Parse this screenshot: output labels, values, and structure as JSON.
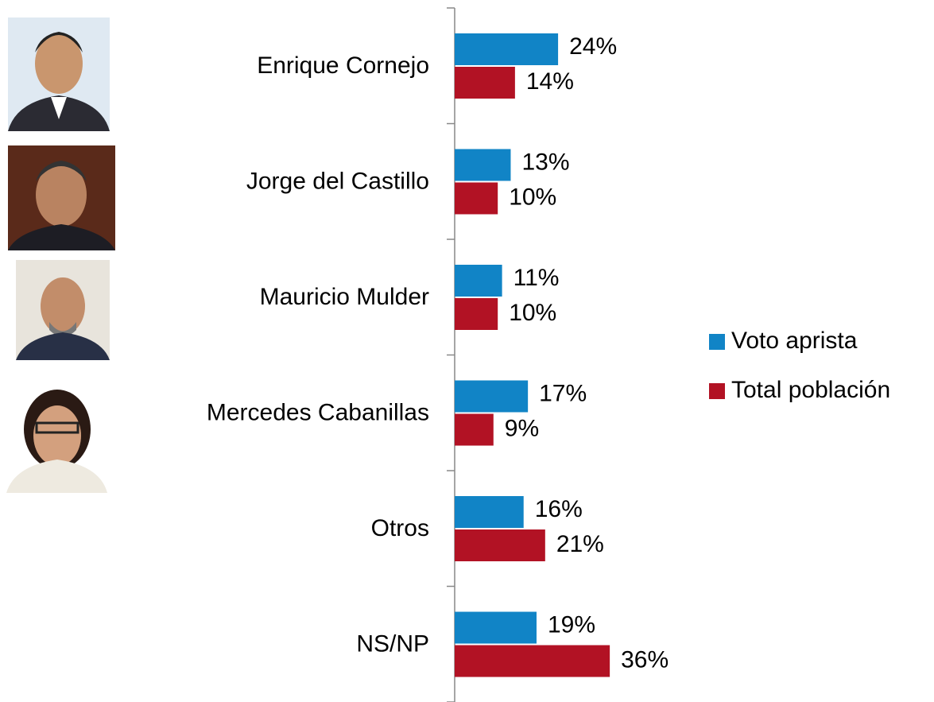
{
  "chart_data": {
    "type": "bar",
    "orientation": "horizontal",
    "categories": [
      "Enrique Cornejo",
      "Jorge del Castillo",
      "Mauricio Mulder",
      "Mercedes Cabanillas",
      "Otros",
      "NS/NP"
    ],
    "series": [
      {
        "name": "Voto aprista",
        "color": "#1184c6",
        "values": [
          24,
          13,
          11,
          17,
          16,
          19
        ],
        "value_labels": [
          "24%",
          "13%",
          "11%",
          "17%",
          "16%",
          "19%"
        ]
      },
      {
        "name": "Total población",
        "color": "#b21224",
        "values": [
          14,
          10,
          10,
          9,
          21,
          36
        ],
        "value_labels": [
          "14%",
          "10%",
          "10%",
          "9%",
          "21%",
          "36%"
        ]
      }
    ],
    "legend": "right"
  }
}
